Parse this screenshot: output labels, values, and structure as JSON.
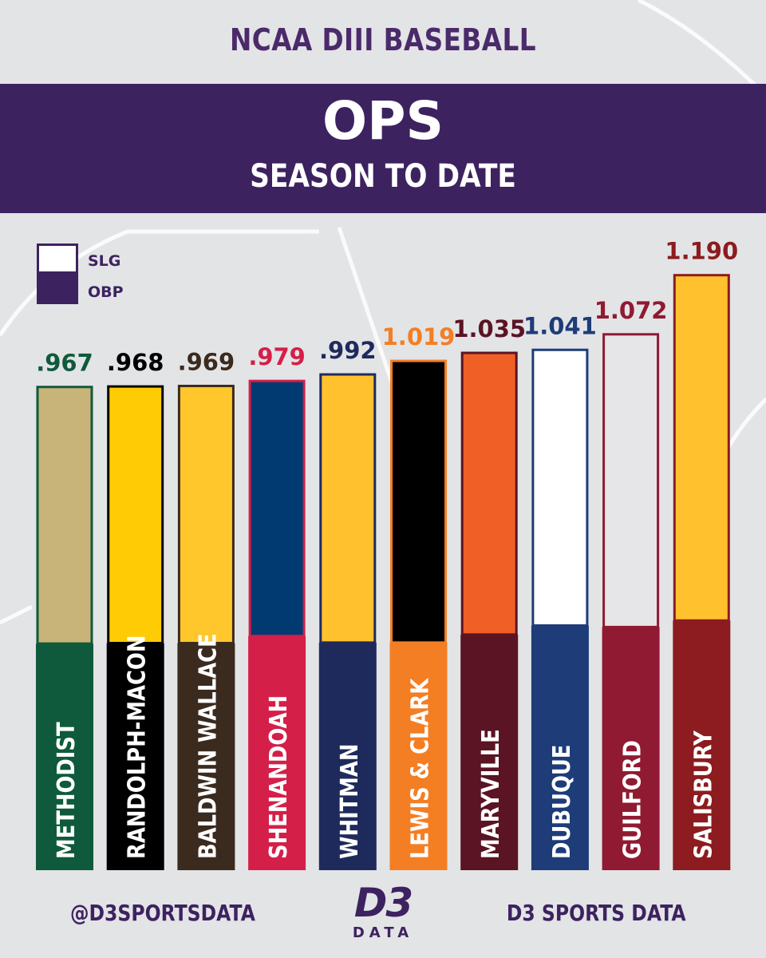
{
  "header": {
    "top_title": "NCAA DIII BASEBALL",
    "title": "OPS",
    "subtitle": "SEASON TO DATE"
  },
  "footer": {
    "left": "@D3SPORTSDATA",
    "right": "D3 SPORTS DATA",
    "logo_main": "D3",
    "logo_sub": "DATA"
  },
  "colors": {
    "banner": "#3d2260",
    "header_text": "#4b2a6b",
    "background": "#e3e4e6"
  },
  "chart_data": {
    "type": "bar",
    "stacked": true,
    "categories": [
      "METHODIST",
      "RANDOLPH-MACON",
      "BALDWIN WALLACE",
      "SHENANDOAH",
      "WHITMAN",
      "LEWIS & CLARK",
      "MARYVILLE",
      "DUBUQUE",
      "GUILFORD",
      "SALISBURY"
    ],
    "totals": [
      0.967,
      0.968,
      0.969,
      0.979,
      0.992,
      1.019,
      1.035,
      1.041,
      1.072,
      1.19
    ],
    "total_labels": [
      ".967",
      ".968",
      ".969",
      ".979",
      ".992",
      "1.019",
      "1.035",
      "1.041",
      "1.072",
      "1.190"
    ],
    "series": [
      {
        "name": "OBP",
        "values": [
          0.452,
          0.453,
          0.453,
          0.467,
          0.454,
          0.454,
          0.47,
          0.488,
          0.485,
          0.498
        ]
      },
      {
        "name": "SLG",
        "values": [
          0.515,
          0.515,
          0.516,
          0.512,
          0.538,
          0.565,
          0.565,
          0.553,
          0.587,
          0.692
        ]
      }
    ],
    "legend": {
      "position": "top-left",
      "entries": [
        "SLG",
        "OBP"
      ]
    },
    "team_colors": [
      {
        "obp": "#0f5a3c",
        "slg": "#c8b479",
        "label": "#0f5a3c"
      },
      {
        "obp": "#000000",
        "slg": "#ffcb05",
        "label": "#000000"
      },
      {
        "obp": "#3b2a1e",
        "slg": "#ffc72c",
        "label": "#3b2a1e"
      },
      {
        "obp": "#d41f49",
        "slg": "#003a70",
        "label": "#d41f49"
      },
      {
        "obp": "#1f2a5c",
        "slg": "#ffc12e",
        "label": "#1f2a5c"
      },
      {
        "obp": "#f47e24",
        "slg": "#000000",
        "label": "#f47e24"
      },
      {
        "obp": "#5a1424",
        "slg": "#ef5f26",
        "label": "#5a1424"
      },
      {
        "obp": "#1d3c78",
        "slg": "#ffffff",
        "label": "#1d3c78"
      },
      {
        "obp": "#901a32",
        "slg": "#e6e6e8",
        "label": "#901a32"
      },
      {
        "obp": "#8c1c1f",
        "slg": "#ffc12e",
        "label": "#8c1c1f"
      }
    ],
    "grid": false
  }
}
